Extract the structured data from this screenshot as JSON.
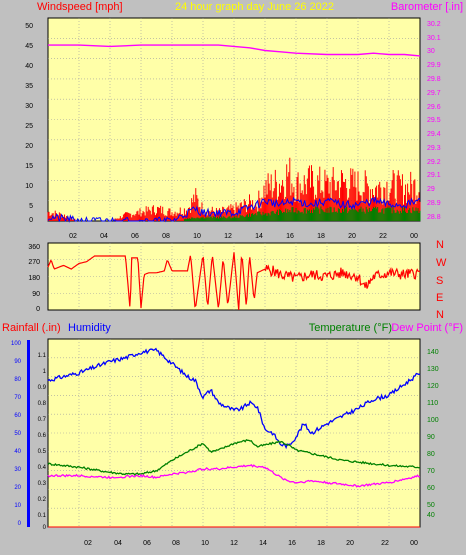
{
  "colors": {
    "background": "#c0c0c0",
    "plot_bg": "#ffffa8",
    "grid": "#a0a0a0",
    "windspeed": "#ff0000",
    "wind_blue": "#0000ff",
    "wind_green": "#008000",
    "barometer": "#ff00ff",
    "title": "#ffff00",
    "direction": "#ff0000",
    "rainfall": "#ff0000",
    "humidity": "#0000ff",
    "temperature": "#008000",
    "dewpoint": "#ff00ff",
    "axis_text": "#000000"
  },
  "chart_data": [
    {
      "type": "line",
      "title": "24 hour graph day   June 26 2022",
      "left_label": "Windspeed [mph]",
      "right_label": "Barometer [.in]",
      "xlim": [
        0,
        24
      ],
      "x_tick_labels": [
        "02",
        "04",
        "06",
        "08",
        "10",
        "12",
        "14",
        "16",
        "18",
        "20",
        "22",
        "00"
      ],
      "y_left_ticks": [
        "50",
        "45",
        "40",
        "35",
        "30",
        "25",
        "20",
        "15",
        "10",
        "5",
        "0"
      ],
      "y_left_lim": [
        0,
        50
      ],
      "y_right_ticks": [
        "30.2",
        "30.1",
        "30",
        "29.9",
        "29.8",
        "29.7",
        "29.6",
        "29.5",
        "29.4",
        "29.3",
        "29.2",
        "29.1",
        "29",
        "28.9",
        "28.8"
      ],
      "y_right_lim": [
        28.76,
        30.26
      ],
      "grid": true,
      "series": [
        {
          "name": "Windspeed [mph]",
          "axis": "left",
          "style": "bars",
          "x": [
            0,
            1,
            2,
            3,
            4,
            5,
            6,
            7,
            8,
            9,
            9.5,
            10,
            11,
            12,
            13,
            13.5,
            14,
            15,
            15.5,
            16,
            17,
            18,
            19,
            20,
            21,
            22,
            23,
            24
          ],
          "y": [
            3,
            2,
            0,
            0,
            0,
            2,
            3,
            4,
            3,
            4,
            8,
            4,
            3,
            4,
            6,
            6,
            11,
            13,
            16,
            12,
            13,
            12,
            13,
            12,
            11,
            12,
            11,
            12
          ]
        },
        {
          "name": "Wind average",
          "axis": "left",
          "style": "bars",
          "x": [
            0,
            2,
            4,
            6,
            8,
            9.5,
            10,
            12,
            13.5,
            14,
            16,
            18,
            20,
            22,
            24
          ],
          "y": [
            0,
            0,
            0,
            0,
            0,
            1,
            1,
            1,
            2,
            2,
            3,
            3,
            3,
            3,
            3
          ]
        },
        {
          "name": "Wind gust",
          "axis": "left",
          "style": "line",
          "x": [
            0,
            2,
            4,
            6,
            8,
            9.5,
            10,
            12,
            13.5,
            14,
            15,
            16,
            17,
            18,
            19,
            20,
            21,
            22,
            23,
            24
          ],
          "y": [
            1,
            0,
            0,
            0,
            0,
            3,
            2,
            2,
            4,
            5,
            4,
            5,
            4,
            5,
            4,
            4,
            5,
            4,
            4,
            5
          ]
        },
        {
          "name": "Barometer [.in]",
          "axis": "right",
          "style": "line",
          "x": [
            0,
            2,
            4,
            6,
            8,
            10,
            11,
            12,
            13,
            14,
            15,
            16,
            18,
            20,
            21,
            22,
            23,
            24
          ],
          "y": [
            30.06,
            30.06,
            30.05,
            30.06,
            30.06,
            30.06,
            30.06,
            30.05,
            30.04,
            30.02,
            30.01,
            30.0,
            29.99,
            29.99,
            30.0,
            29.99,
            29.99,
            29.98
          ]
        }
      ]
    },
    {
      "type": "line",
      "xlim": [
        0,
        24
      ],
      "y_ticks": [
        "360",
        "270",
        "180",
        "90",
        "0"
      ],
      "ylim": [
        0,
        360
      ],
      "compass_labels": [
        "N",
        "W",
        "S",
        "E",
        "N"
      ],
      "grid": true,
      "series": [
        {
          "name": "Wind direction",
          "x": [
            0,
            0.2,
            0.4,
            1,
            1.5,
            2,
            2.5,
            3,
            5,
            5.3,
            5.4,
            5.8,
            6,
            6.2,
            6.5,
            7,
            7.5,
            7.7,
            8,
            8.5,
            9,
            9.2,
            9.5,
            10,
            10.3,
            10.6,
            11,
            11.3,
            11.6,
            12,
            12.3,
            12.5,
            12.8,
            13,
            13.3,
            13.5,
            14,
            14.5,
            15,
            16,
            17,
            18,
            19,
            20,
            20.5,
            21,
            22,
            23,
            24
          ],
          "y": [
            230,
            270,
            220,
            240,
            220,
            250,
            260,
            290,
            290,
            0,
            280,
            280,
            10,
            190,
            200,
            200,
            210,
            270,
            210,
            210,
            210,
            300,
            0,
            300,
            10,
            300,
            0,
            280,
            20,
            310,
            0,
            310,
            10,
            300,
            50,
            200,
            220,
            210,
            190,
            170,
            190,
            180,
            200,
            180,
            120,
            180,
            200,
            190,
            200
          ]
        }
      ]
    },
    {
      "type": "line",
      "left_label_1": "Rainfall (.in)",
      "left_label_2": "Humidity",
      "right_label_1": "Temperature (°F)",
      "right_label_2": "Dew Point (°F)",
      "xlim": [
        0,
        24
      ],
      "x_tick_labels": [
        "02",
        "04",
        "06",
        "08",
        "10",
        "12",
        "14",
        "16",
        "18",
        "20",
        "22",
        "00"
      ],
      "y_humidity_ticks": [
        "100",
        "90",
        "80",
        "70",
        "60",
        "50",
        "40",
        "30",
        "20",
        "10",
        "0"
      ],
      "humidity_lim": [
        0,
        100
      ],
      "y_rain_ticks": [
        "1.1",
        "1",
        "0.9",
        "0.8",
        "0.7",
        "0.6",
        "0.5",
        "0.4",
        "0.3",
        "0.2",
        "0.1",
        "0"
      ],
      "rain_lim": [
        0,
        1.15
      ],
      "y_temp_ticks": [
        "140",
        "130",
        "120",
        "110",
        "100",
        "90",
        "80",
        "70",
        "60",
        "50",
        "40"
      ],
      "temp_lim": [
        35,
        145
      ],
      "grid": true,
      "series": [
        {
          "name": "Humidity",
          "axis": "humidity",
          "x": [
            0,
            1,
            2,
            3,
            4,
            5,
            6,
            7,
            8,
            9,
            9.5,
            10,
            10.5,
            11,
            12,
            12.5,
            13,
            13.5,
            14,
            14.5,
            15,
            15.5,
            16,
            16.5,
            17,
            18,
            19,
            20,
            21,
            22,
            23,
            24
          ],
          "y": [
            78,
            80,
            82,
            85,
            88,
            90,
            93,
            94,
            87,
            80,
            78,
            69,
            73,
            66,
            62,
            63,
            66,
            64,
            52,
            50,
            44,
            43,
            48,
            55,
            50,
            55,
            59,
            63,
            68,
            70,
            76,
            82
          ]
        },
        {
          "name": "Temperature (°F)",
          "axis": "temp",
          "x": [
            0,
            2,
            4,
            5,
            6,
            7,
            8,
            9,
            10,
            10.5,
            11,
            12,
            13,
            13.5,
            14,
            15,
            15.5,
            16,
            17,
            18,
            19,
            20,
            22,
            24
          ],
          "y": [
            72,
            70,
            67,
            66,
            66,
            68,
            74,
            79,
            84,
            79,
            80,
            84,
            86,
            82,
            83,
            85,
            83,
            80,
            78,
            76,
            74,
            73,
            71,
            70
          ]
        },
        {
          "name": "Dew Point (°F)",
          "axis": "temp",
          "x": [
            0,
            2,
            4,
            6,
            7,
            8,
            9,
            10,
            11,
            12,
            13,
            14,
            14.5,
            15,
            15.5,
            16,
            17,
            18,
            19,
            20,
            21,
            22,
            23,
            24
          ],
          "y": [
            65,
            65,
            64,
            65,
            64,
            66,
            67,
            69,
            69,
            70,
            71,
            70,
            67,
            64,
            62,
            61,
            62,
            61,
            60,
            59,
            60,
            61,
            63,
            65
          ]
        },
        {
          "name": "Rainfall (.in)",
          "axis": "rain",
          "x": [
            0,
            24
          ],
          "y": [
            0,
            0
          ]
        }
      ]
    }
  ]
}
